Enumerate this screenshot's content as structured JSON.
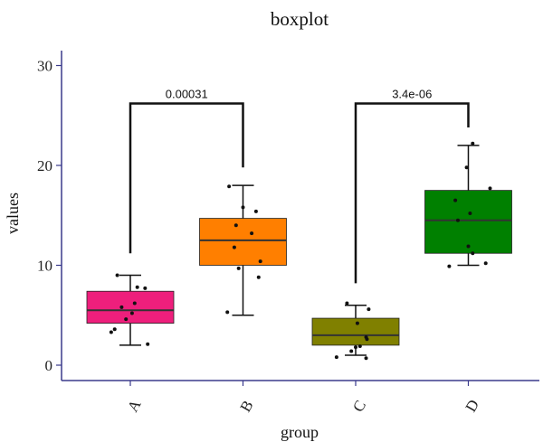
{
  "chart_data": {
    "type": "boxplot",
    "title": "boxplot",
    "xlabel": "group",
    "ylabel": "values",
    "ylim": [
      -1,
      31
    ],
    "yticks": [
      0,
      10,
      20,
      30
    ],
    "categories": [
      "A",
      "B",
      "C",
      "D"
    ],
    "groups": [
      {
        "name": "A",
        "color": "#ee1f7c",
        "min": 2.0,
        "q1": 4.2,
        "median": 5.5,
        "q3": 7.4,
        "max": 9.0,
        "points": [
          [
            -0.22,
            3.3
          ],
          [
            -0.18,
            3.6
          ],
          [
            -0.1,
            5.8
          ],
          [
            -0.05,
            4.6
          ],
          [
            0.02,
            5.2
          ],
          [
            0.05,
            6.2
          ],
          [
            0.08,
            7.8
          ],
          [
            -0.15,
            9.0
          ],
          [
            0.17,
            7.7
          ],
          [
            0.2,
            2.1
          ]
        ]
      },
      {
        "name": "B",
        "color": "#ff7f00",
        "min": 5.0,
        "q1": 10.0,
        "median": 12.5,
        "q3": 14.7,
        "max": 18.0,
        "points": [
          [
            -0.18,
            5.3
          ],
          [
            -0.05,
            9.7
          ],
          [
            -0.1,
            11.8
          ],
          [
            -0.08,
            14.0
          ],
          [
            0.1,
            13.2
          ],
          [
            0.15,
            15.4
          ],
          [
            0.2,
            10.4
          ],
          [
            0.18,
            8.8
          ],
          [
            -0.16,
            17.9
          ],
          [
            0.0,
            15.8
          ]
        ]
      },
      {
        "name": "C",
        "color": "#808000",
        "min": 1.0,
        "q1": 2.0,
        "median": 3.0,
        "q3": 4.7,
        "max": 6.0,
        "points": [
          [
            -0.22,
            0.8
          ],
          [
            -0.05,
            1.4
          ],
          [
            0.0,
            1.8
          ],
          [
            0.02,
            4.2
          ],
          [
            0.12,
            2.8
          ],
          [
            0.13,
            2.6
          ],
          [
            0.15,
            5.6
          ],
          [
            0.12,
            0.7
          ],
          [
            -0.1,
            6.2
          ],
          [
            0.05,
            1.9
          ]
        ]
      },
      {
        "name": "D",
        "color": "#008000",
        "min": 10.0,
        "q1": 11.2,
        "median": 14.5,
        "q3": 17.5,
        "max": 22.0,
        "points": [
          [
            -0.22,
            9.9
          ],
          [
            -0.15,
            16.5
          ],
          [
            -0.12,
            14.5
          ],
          [
            0.0,
            11.9
          ],
          [
            0.02,
            15.2
          ],
          [
            -0.02,
            19.8
          ],
          [
            0.05,
            22.2
          ],
          [
            0.05,
            11.2
          ],
          [
            0.2,
            10.2
          ],
          [
            0.25,
            17.7
          ]
        ]
      }
    ],
    "comparisons": [
      {
        "groups": [
          "A",
          "B"
        ],
        "label": "0.00031",
        "y": 26.2
      },
      {
        "groups": [
          "C",
          "D"
        ],
        "label": "3.4e-06",
        "y": 26.2
      }
    ]
  }
}
